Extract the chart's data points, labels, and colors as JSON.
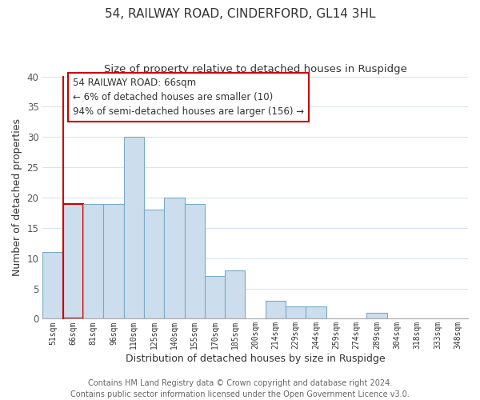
{
  "title": "54, RAILWAY ROAD, CINDERFORD, GL14 3HL",
  "subtitle": "Size of property relative to detached houses in Ruspidge",
  "xlabel": "Distribution of detached houses by size in Ruspidge",
  "ylabel": "Number of detached properties",
  "bar_labels": [
    "51sqm",
    "66sqm",
    "81sqm",
    "96sqm",
    "110sqm",
    "125sqm",
    "140sqm",
    "155sqm",
    "170sqm",
    "185sqm",
    "200sqm",
    "214sqm",
    "229sqm",
    "244sqm",
    "259sqm",
    "274sqm",
    "289sqm",
    "304sqm",
    "318sqm",
    "333sqm",
    "348sqm"
  ],
  "bar_heights": [
    11,
    19,
    19,
    19,
    30,
    18,
    20,
    19,
    7,
    8,
    0,
    3,
    2,
    2,
    0,
    0,
    1,
    0,
    0,
    0,
    0
  ],
  "bar_color": "#ccdded",
  "highlight_bar_index": 1,
  "highlight_edge_color": "#cc0000",
  "normal_edge_color": "#7aaac8",
  "annotation_text": "54 RAILWAY ROAD: 66sqm\n← 6% of detached houses are smaller (10)\n94% of semi-detached houses are larger (156) →",
  "annotation_box_edge_color": "#cc0000",
  "ylim": [
    0,
    40
  ],
  "yticks": [
    0,
    5,
    10,
    15,
    20,
    25,
    30,
    35,
    40
  ],
  "footer_line1": "Contains HM Land Registry data © Crown copyright and database right 2024.",
  "footer_line2": "Contains public sector information licensed under the Open Government Licence v3.0.",
  "title_fontsize": 11,
  "subtitle_fontsize": 9.5,
  "xlabel_fontsize": 9,
  "ylabel_fontsize": 9,
  "annotation_fontsize": 8.5,
  "footer_fontsize": 7,
  "background_color": "#ffffff",
  "grid_color": "#d8e4ee"
}
